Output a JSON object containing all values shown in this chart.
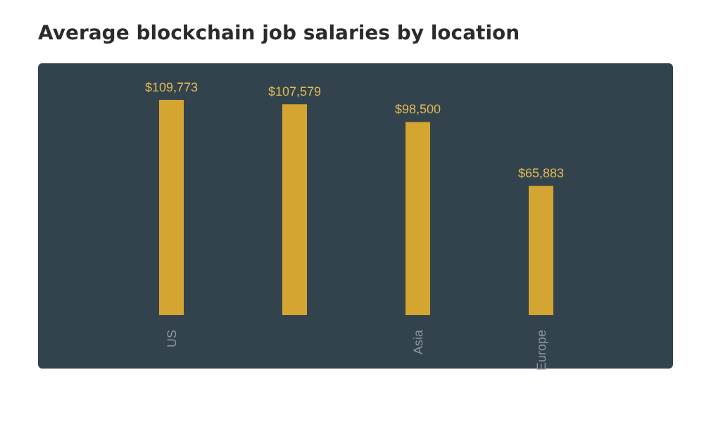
{
  "chart_data": {
    "type": "bar",
    "title": "Average blockchain job salaries by location",
    "categories": [
      "US",
      null,
      "Asia",
      "Europe"
    ],
    "values": [
      109773,
      107579,
      98500,
      65883
    ],
    "value_labels": [
      "$109,773",
      "$107,579",
      "$98,500",
      "$65,883"
    ],
    "color": "#d4a530",
    "grid": false
  }
}
